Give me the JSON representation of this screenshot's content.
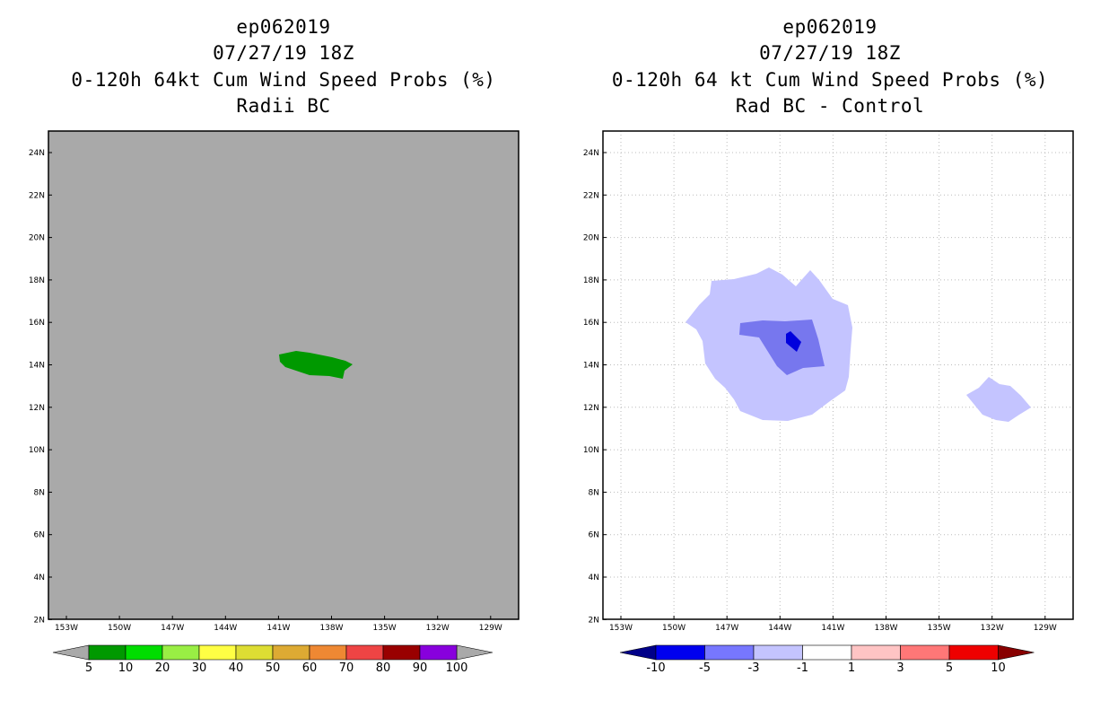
{
  "left": {
    "title_lines": [
      "ep062019",
      "07/27/19 18Z",
      "0-120h 64kt Cum Wind Speed Probs (%)",
      "Radii BC"
    ],
    "background_color": "#a9a9a9",
    "x_ticks": [
      "153W",
      "150W",
      "147W",
      "144W",
      "141W",
      "138W",
      "135W",
      "132W",
      "129W"
    ],
    "y_ticks": [
      "24N",
      "22N",
      "20N",
      "18N",
      "16N",
      "14N",
      "12N",
      "10N",
      "8N",
      "6N",
      "4N",
      "2N"
    ],
    "colorbar": {
      "labels": [
        "5",
        "10",
        "20",
        "30",
        "40",
        "50",
        "60",
        "70",
        "80",
        "90",
        "100"
      ],
      "colors": [
        "#009900",
        "#00dd00",
        "#99ee44",
        "#ffff44",
        "#dddd33",
        "#ddaa33",
        "#ee8833",
        "#ee4444",
        "#990000",
        "#8800dd"
      ],
      "under_color": "#a9a9a9",
      "over_color": "#a9a9a9"
    },
    "feature_color": "#009900"
  },
  "right": {
    "title_lines": [
      "ep062019",
      "07/27/19 18Z",
      "0-120h 64 kt Cum Wind Speed Probs (%)",
      "Rad BC - Control"
    ],
    "x_ticks": [
      "153W",
      "150W",
      "147W",
      "144W",
      "141W",
      "138W",
      "135W",
      "132W",
      "129W"
    ],
    "y_ticks": [
      "24N",
      "22N",
      "20N",
      "18N",
      "16N",
      "14N",
      "12N",
      "10N",
      "8N",
      "6N",
      "4N",
      "2N"
    ],
    "colorbar": {
      "labels": [
        "-10",
        "-5",
        "-3",
        "-1",
        "1",
        "3",
        "5",
        "10"
      ],
      "colors": [
        "#0000ee",
        "#7777ff",
        "#c4c4ff",
        "#ffffff",
        "#ffc4c4",
        "#ff7777",
        "#ee0000"
      ],
      "under_color": "#000088",
      "over_color": "#880000"
    },
    "feature_colors": {
      "light": "#c4c4ff",
      "medium": "#7777ee",
      "dark": "#0000dd"
    }
  }
}
